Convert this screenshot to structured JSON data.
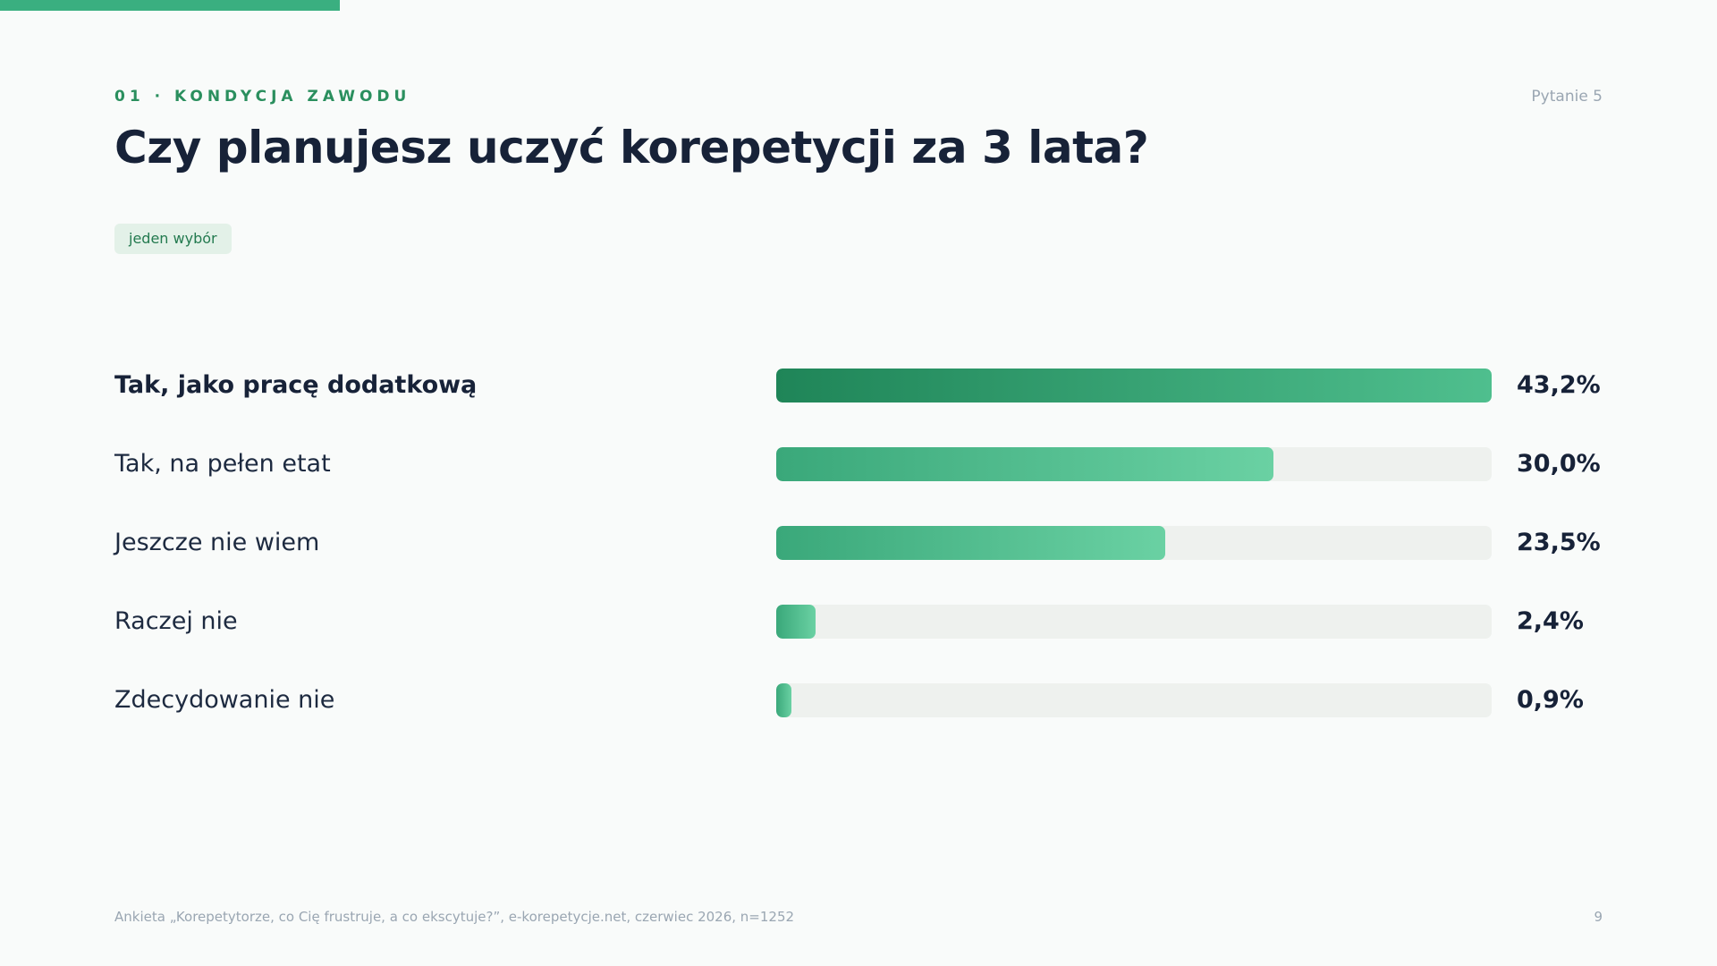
{
  "header": {
    "section_label": "01 · KONDYCJA ZAWODU",
    "question_number": "Pytanie 5",
    "title": "Czy planujesz uczyć korepetycji za 3 lata?",
    "badge": "jeden wybór"
  },
  "chart_data": {
    "type": "bar",
    "orientation": "horizontal",
    "categories": [
      "Tak, jako pracę dodatkową",
      "Tak, na pełen etat",
      "Jeszcze nie wiem",
      "Raczej nie",
      "Zdecydowanie nie"
    ],
    "values": [
      43.2,
      30.0,
      23.5,
      2.4,
      0.9
    ],
    "value_labels": [
      "43,2%",
      "30,0%",
      "23,5%",
      "2,4%",
      "0,9%"
    ],
    "xlim": [
      0,
      43.2
    ],
    "highlight_index": 0,
    "grid": false,
    "colors": {
      "top_bar_start": "#1f8558",
      "top_bar_end": "#4fbf8e",
      "bar_start": "#3aa87a",
      "bar_end": "#6ad1a3",
      "track": "#eef1ee"
    }
  },
  "footer": {
    "source": "Ankieta „Korepetytorze, co Cię frustruje, a co ekscytuje?”, e-korepetycje.net, czerwiec 2026, n=1252",
    "page_number": "9"
  },
  "colors": {
    "accent": "#3aaf80",
    "text_dark": "#172238",
    "text_muted": "#9aa6b2",
    "background": "#f9fbfa"
  }
}
